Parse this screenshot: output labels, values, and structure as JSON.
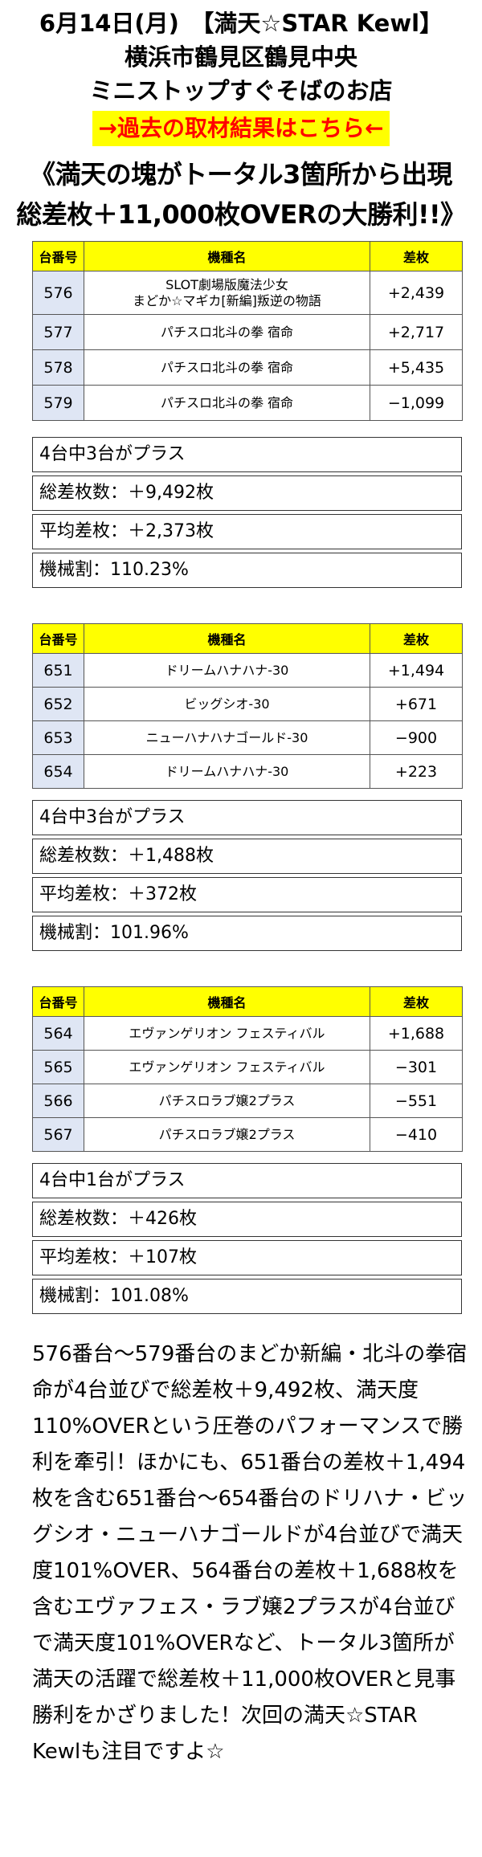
{
  "header": {
    "line1": "6月14日(月)　【満天☆STAR Kewl】",
    "line2": "横浜市鶴見区鶴見中央",
    "line3": "ミニストップすぐそばのお店",
    "link_text": "→過去の取材結果はこちら←"
  },
  "headline": {
    "line1": "《満天の塊がトータル3箇所から出現",
    "line2": "総差枚＋11,000枚OVERの大勝利!!》"
  },
  "columns": {
    "num": "台番号",
    "name": "機種名",
    "diff": "差枚"
  },
  "colors": {
    "header_bg": "#ffff00",
    "number_cell_bg": "#dfe6f4",
    "link_text": "#ff0000"
  },
  "groups": [
    {
      "rows": [
        {
          "num": "576",
          "name1": "SLOT劇場版魔法少女",
          "name2": "まどか☆マギカ[新編]叛逆の物語",
          "diff": "+2,439"
        },
        {
          "num": "577",
          "name1": "パチスロ北斗の拳 宿命",
          "name2": "",
          "diff": "+2,717"
        },
        {
          "num": "578",
          "name1": "パチスロ北斗の拳 宿命",
          "name2": "",
          "diff": "+5,435"
        },
        {
          "num": "579",
          "name1": "パチスロ北斗の拳 宿命",
          "name2": "",
          "diff": "−1,099"
        }
      ],
      "stats": [
        "4台中3台がプラス",
        "総差枚数：＋9,492枚",
        "平均差枚：＋2,373枚",
        "機械割：110.23%"
      ]
    },
    {
      "rows": [
        {
          "num": "651",
          "name1": "ドリームハナハナ-30",
          "name2": "",
          "diff": "+1,494"
        },
        {
          "num": "652",
          "name1": "ビッグシオ-30",
          "name2": "",
          "diff": "+671"
        },
        {
          "num": "653",
          "name1": "ニューハナハナゴールド-30",
          "name2": "",
          "diff": "−900"
        },
        {
          "num": "654",
          "name1": "ドリームハナハナ-30",
          "name2": "",
          "diff": "+223"
        }
      ],
      "stats": [
        "4台中3台がプラス",
        "総差枚数：＋1,488枚",
        "平均差枚：＋372枚",
        "機械割：101.96%"
      ]
    },
    {
      "rows": [
        {
          "num": "564",
          "name1": "エヴァンゲリオン フェスティバル",
          "name2": "",
          "diff": "+1,688"
        },
        {
          "num": "565",
          "name1": "エヴァンゲリオン フェスティバル",
          "name2": "",
          "diff": "−301"
        },
        {
          "num": "566",
          "name1": "パチスロラブ嬢2プラス",
          "name2": "",
          "diff": "−551"
        },
        {
          "num": "567",
          "name1": "パチスロラブ嬢2プラス",
          "name2": "",
          "diff": "−410"
        }
      ],
      "stats": [
        "4台中1台がプラス",
        "総差枚数：＋426枚",
        "平均差枚：＋107枚",
        "機械割：101.08%"
      ]
    }
  ],
  "summary": "576番台〜579番台のまどか新編・北斗の拳宿命が4台並びで総差枚＋9,492枚、満天度110%OVERという圧巻のパフォーマンスで勝利を牽引！ほかにも、651番台の差枚＋1,494枚を含む651番台〜654番台のドリハナ・ビッグシオ・ニューハナゴールドが4台並びで満天度101%OVER、564番台の差枚＋1,688枚を含むエヴァフェス・ラブ嬢2プラスが4台並びで満天度101%OVERなど、トータル3箇所が満天の活躍で総差枚＋11,000枚OVERと見事勝利をかざりました！次回の満天☆STAR Kewlも注目ですよ☆"
}
